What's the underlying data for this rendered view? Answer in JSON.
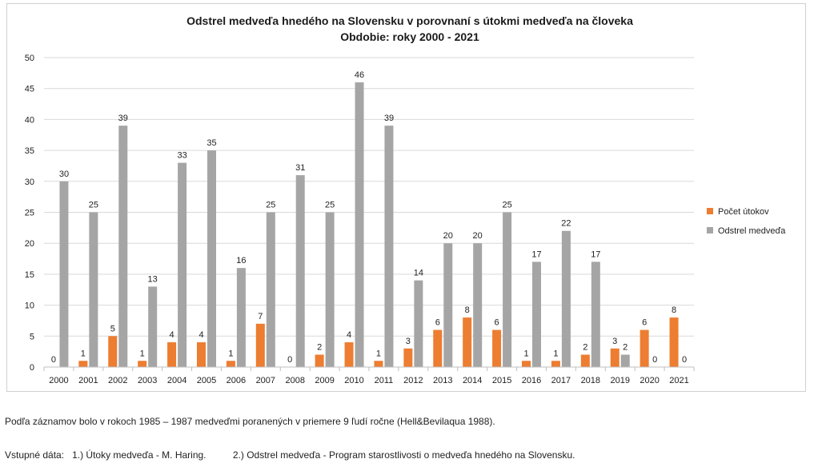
{
  "chart_data": {
    "type": "bar",
    "title": "Odstrel medveďa hnedého na Slovensku v porovnaní s útokmi medveďa na človeka",
    "subtitle": "Obdobie: roky 2000 - 2021",
    "categories": [
      "2000",
      "2001",
      "2002",
      "2003",
      "2004",
      "2005",
      "2006",
      "2007",
      "2008",
      "2009",
      "2010",
      "2011",
      "2012",
      "2013",
      "2014",
      "2015",
      "2016",
      "2017",
      "2018",
      "2019",
      "2020",
      "2021"
    ],
    "series": [
      {
        "name": "Počet útokov",
        "color": "#ed7d31",
        "values": [
          0,
          1,
          5,
          1,
          4,
          4,
          1,
          7,
          0,
          2,
          4,
          1,
          3,
          6,
          8,
          6,
          1,
          1,
          2,
          3,
          6,
          8
        ]
      },
      {
        "name": "Odstrel medveďa",
        "color": "#a5a5a5",
        "values": [
          30,
          25,
          39,
          13,
          33,
          35,
          16,
          25,
          31,
          25,
          46,
          39,
          14,
          20,
          20,
          25,
          17,
          22,
          17,
          2,
          0,
          0
        ]
      }
    ],
    "ylim": [
      0,
      50
    ],
    "yticks": [
      0,
      5,
      10,
      15,
      20,
      25,
      30,
      35,
      40,
      45,
      50
    ],
    "grid": true,
    "legend": "right"
  },
  "notes": {
    "line1": "Podľa záznamov bolo v rokoch 1985 – 1987 medveďmi poranených v priemere 9 ľudí ročne (Hell&Bevilaqua 1988).",
    "sources_label": "Vstupné dáta:",
    "source1": "1.) Útoky medveďa - M. Haring.",
    "source2": "2.) Odstrel medveďa - Program starostlivosti o medveďa hnedého na Slovensku."
  }
}
